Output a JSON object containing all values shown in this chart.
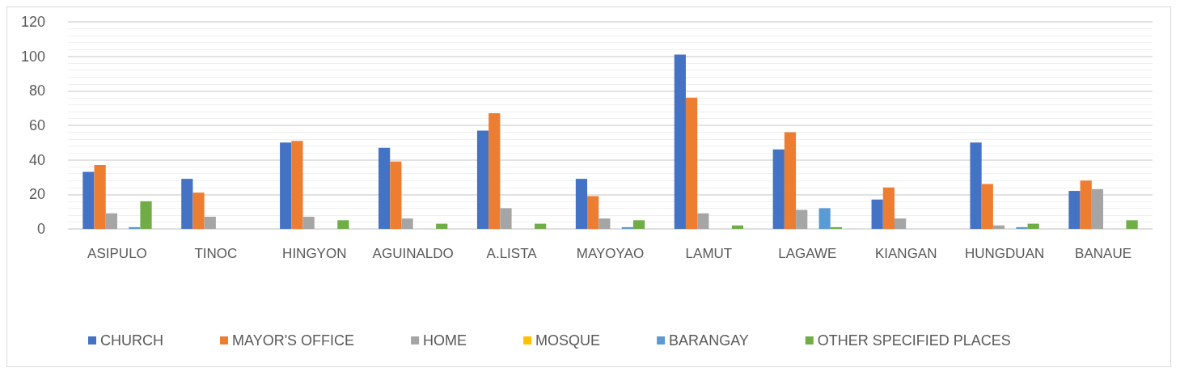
{
  "chart_data": {
    "type": "bar",
    "categories": [
      "ASIPULO",
      "TINOC",
      "HINGYON",
      "AGUINALDO",
      "A.LISTA",
      "MAYOYAO",
      "LAMUT",
      "LAGAWE",
      "KIANGAN",
      "HUNGDUAN",
      "BANAUE"
    ],
    "series": [
      {
        "name": "CHURCH",
        "color": "#4472c4",
        "values": [
          33,
          29,
          50,
          47,
          57,
          29,
          101,
          46,
          17,
          50,
          22
        ]
      },
      {
        "name": "MAYOR'S OFFICE",
        "color": "#ed7d31",
        "values": [
          37,
          21,
          51,
          39,
          67,
          19,
          76,
          56,
          24,
          26,
          28
        ]
      },
      {
        "name": "HOME",
        "color": "#a5a5a5",
        "values": [
          9,
          7,
          7,
          6,
          12,
          6,
          9,
          11,
          6,
          2,
          23
        ]
      },
      {
        "name": "MOSQUE",
        "color": "#ffc000",
        "values": [
          0,
          0,
          0,
          0,
          0,
          0,
          0,
          0,
          0,
          0,
          0
        ]
      },
      {
        "name": "BARANGAY",
        "color": "#5b9bd5",
        "values": [
          1,
          0,
          0,
          0,
          0,
          1,
          0,
          12,
          0,
          1,
          0
        ]
      },
      {
        "name": "OTHER SPECIFIED PLACES",
        "color": "#70ad47",
        "values": [
          16,
          0,
          5,
          3,
          3,
          5,
          2,
          1,
          0,
          3,
          5
        ]
      }
    ],
    "ylim": [
      0,
      120
    ],
    "yticks": [
      0,
      20,
      40,
      60,
      80,
      100,
      120
    ],
    "grid": "y",
    "legend": "bottom"
  }
}
